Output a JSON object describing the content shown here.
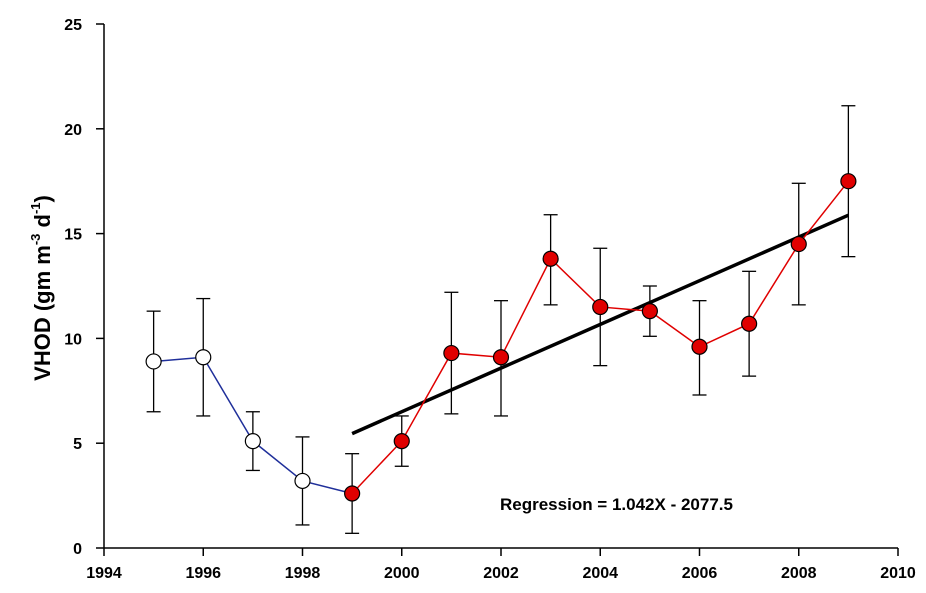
{
  "chart_data": {
    "type": "line",
    "title": "",
    "xlabel": "",
    "ylabel": {
      "prefix": "VHOD  (gm m",
      "sup1": "-3",
      "mid": " d",
      "sup2": "-1",
      "suffix": ")"
    },
    "xlim": [
      1994,
      2010
    ],
    "ylim": [
      0,
      25
    ],
    "x_ticks": [
      1994,
      1996,
      1998,
      2000,
      2002,
      2004,
      2006,
      2008,
      2010
    ],
    "y_ticks": [
      0,
      5,
      10,
      15,
      20,
      25
    ],
    "grid": false,
    "series": [
      {
        "line_color": "#1f2f9a",
        "marker_fill": "#ffffff",
        "points": [
          {
            "x": 1995,
            "y": 8.9,
            "err_low": 6.5,
            "err_high": 11.3
          },
          {
            "x": 1996,
            "y": 9.1,
            "err_low": 6.3,
            "err_high": 11.9
          },
          {
            "x": 1997,
            "y": 5.1,
            "err_low": 3.7,
            "err_high": 6.5
          },
          {
            "x": 1998,
            "y": 3.2,
            "err_low": 1.1,
            "err_high": 5.3
          },
          {
            "x": 1999,
            "y": 2.6
          }
        ]
      },
      {
        "line_color": "#e00000",
        "marker_fill": "#e00000",
        "points": [
          {
            "x": 1999,
            "y": 2.6,
            "err_low": 0.7,
            "err_high": 4.5
          },
          {
            "x": 2000,
            "y": 5.1,
            "err_low": 3.9,
            "err_high": 6.3
          },
          {
            "x": 2001,
            "y": 9.3,
            "err_low": 6.4,
            "err_high": 12.2
          },
          {
            "x": 2002,
            "y": 9.1,
            "err_low": 6.3,
            "err_high": 11.8
          },
          {
            "x": 2003,
            "y": 13.8,
            "err_low": 11.6,
            "err_high": 15.9
          },
          {
            "x": 2004,
            "y": 11.5,
            "err_low": 8.7,
            "err_high": 14.3
          },
          {
            "x": 2005,
            "y": 11.3,
            "err_low": 10.1,
            "err_high": 12.5
          },
          {
            "x": 2006,
            "y": 9.6,
            "err_low": 7.3,
            "err_high": 11.8
          },
          {
            "x": 2007,
            "y": 10.7,
            "err_low": 8.2,
            "err_high": 13.2
          },
          {
            "x": 2008,
            "y": 14.5,
            "err_low": 11.6,
            "err_high": 17.4
          },
          {
            "x": 2009,
            "y": 17.5,
            "err_low": 13.9,
            "err_high": 21.1
          }
        ]
      }
    ],
    "regression": {
      "slope": 1.042,
      "intercept": -2077.5,
      "x_range": [
        1999,
        2009
      ],
      "color": "#000000",
      "annotation": "Regression = 1.042X - 2077.5"
    }
  }
}
